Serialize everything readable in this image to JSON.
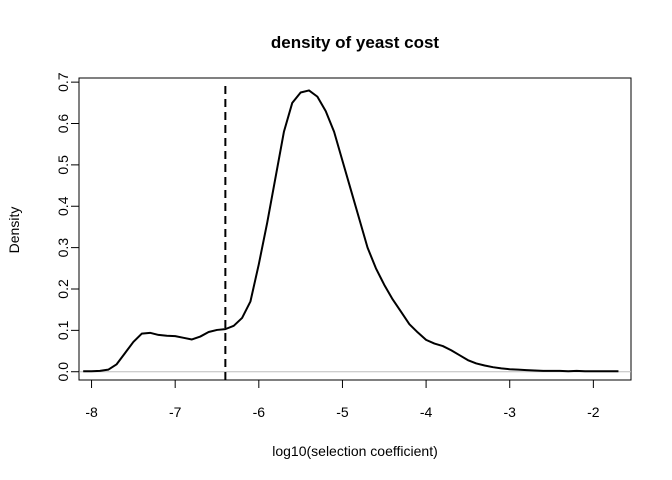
{
  "chart_data": {
    "type": "line",
    "title": "density of yeast cost",
    "xlabel": "log10(selection coefficient)",
    "ylabel": "Density",
    "xlim": [
      -8.15,
      -1.55
    ],
    "ylim": [
      -0.02,
      0.71
    ],
    "xticks": [
      -8,
      -7,
      -6,
      -5,
      -4,
      -3,
      -2
    ],
    "xtick_labels": [
      "-8",
      "-7",
      "-6",
      "-5",
      "-4",
      "-3",
      "-2"
    ],
    "yticks": [
      0.0,
      0.1,
      0.2,
      0.3,
      0.4,
      0.5,
      0.6,
      0.7
    ],
    "ytick_labels": [
      "0.0",
      "0.1",
      "0.2",
      "0.3",
      "0.4",
      "0.5",
      "0.6",
      "0.7"
    ],
    "grid": false,
    "series": [
      {
        "x": [
          -8.1,
          -8.0,
          -7.9,
          -7.8,
          -7.7,
          -7.6,
          -7.5,
          -7.4,
          -7.3,
          -7.2,
          -7.1,
          -7.0,
          -6.9,
          -6.8,
          -6.7,
          -6.6,
          -6.5,
          -6.4,
          -6.3,
          -6.2,
          -6.1,
          -6.0,
          -5.9,
          -5.8,
          -5.7,
          -5.6,
          -5.5,
          -5.4,
          -5.3,
          -5.2,
          -5.1,
          -5.0,
          -4.9,
          -4.8,
          -4.7,
          -4.6,
          -4.5,
          -4.4,
          -4.3,
          -4.2,
          -4.1,
          -4.0,
          -3.9,
          -3.8,
          -3.7,
          -3.6,
          -3.5,
          -3.4,
          -3.3,
          -3.2,
          -3.1,
          -3.0,
          -2.9,
          -2.8,
          -2.7,
          -2.6,
          -2.5,
          -2.4,
          -2.3,
          -2.2,
          -2.1,
          -2.0,
          -1.9,
          -1.8,
          -1.7
        ],
        "y": [
          0.001,
          0.001,
          0.002,
          0.005,
          0.018,
          0.045,
          0.072,
          0.092,
          0.094,
          0.089,
          0.087,
          0.086,
          0.082,
          0.078,
          0.085,
          0.096,
          0.101,
          0.103,
          0.111,
          0.13,
          0.17,
          0.26,
          0.36,
          0.47,
          0.58,
          0.65,
          0.675,
          0.68,
          0.665,
          0.63,
          0.58,
          0.51,
          0.44,
          0.37,
          0.3,
          0.25,
          0.21,
          0.175,
          0.145,
          0.115,
          0.095,
          0.077,
          0.068,
          0.062,
          0.052,
          0.04,
          0.028,
          0.02,
          0.015,
          0.011,
          0.008,
          0.006,
          0.005,
          0.004,
          0.003,
          0.002,
          0.002,
          0.002,
          0.001,
          0.002,
          0.001,
          0.001,
          0.001,
          0.001,
          0.001
        ],
        "color": "#000000"
      }
    ],
    "reference_lines": {
      "vertical_dashed_x": -6.4,
      "horizontal_zero_color": "#bebebe"
    }
  }
}
